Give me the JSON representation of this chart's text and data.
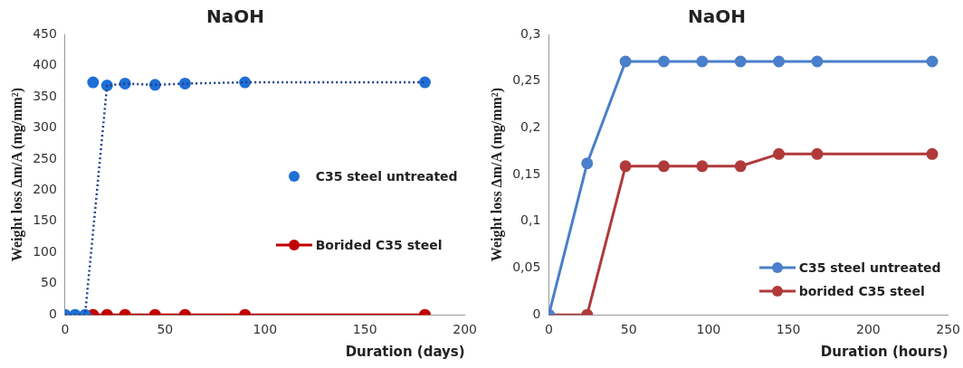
{
  "chart_data": [
    {
      "type": "line",
      "title": "NaOH",
      "xlabel": "Duration (days)",
      "ylabel": "Weight loss Δm/A (mg/mm²)",
      "xlim": [
        0,
        200
      ],
      "xticks": [
        0,
        50,
        100,
        150,
        200
      ],
      "ylim": [
        0,
        450
      ],
      "yticks": [
        0,
        50,
        100,
        150,
        200,
        250,
        300,
        350,
        400,
        450
      ],
      "grid": false,
      "legend": "center right",
      "marker": "circle",
      "series": [
        {
          "type": "line",
          "color": "#1f3c88",
          "line_style": "dotted",
          "marker": "none",
          "x": [
            0,
            10,
            21,
            30,
            45,
            60,
            90,
            180
          ],
          "values": [
            0,
            0,
            368,
            371,
            369,
            371,
            373,
            373
          ]
        },
        {
          "name": "C35 steel untreated",
          "type": "scatter",
          "color": "#1f6fd6",
          "x": [
            0,
            5,
            10,
            14,
            21,
            30,
            45,
            60,
            90,
            180
          ],
          "values": [
            0,
            0,
            0,
            373,
            368,
            371,
            369,
            371,
            373,
            373
          ]
        },
        {
          "name": "Borided C35 steel",
          "type": "line",
          "color": "#c00000",
          "line_style": "solid",
          "x": [
            14,
            21,
            30,
            45,
            60,
            90,
            180
          ],
          "values": [
            0,
            0,
            0,
            0,
            0,
            0,
            0
          ]
        }
      ]
    },
    {
      "type": "line",
      "title": "NaOH",
      "xlabel": "Duration (hours)",
      "ylabel": "Weight loss Δm/A (mg/mm²)",
      "xlim": [
        0,
        250
      ],
      "xticks": [
        0,
        50,
        100,
        150,
        200,
        250
      ],
      "ylim": [
        0,
        0.3
      ],
      "yticks": [
        0,
        {
          "value": 0.05,
          "label": "0,05"
        },
        {
          "value": 0.1,
          "label": "0,1"
        },
        {
          "value": 0.15,
          "label": "0,15"
        },
        {
          "value": 0.2,
          "label": "0,2"
        },
        {
          "value": 0.25,
          "label": "0,25"
        },
        {
          "value": 0.3,
          "label": "0,3"
        }
      ],
      "grid": false,
      "legend": "bottom right",
      "marker": "circle",
      "series": [
        {
          "name": "C35 steel untreated",
          "type": "line",
          "color": "#4a7fcb",
          "line_style": "solid",
          "x": [
            0,
            24,
            48,
            72,
            96,
            120,
            144,
            168,
            240
          ],
          "values": [
            0,
            0.162,
            0.271,
            0.271,
            0.271,
            0.271,
            0.271,
            0.271,
            0.271
          ]
        },
        {
          "name": "borided C35 steel",
          "type": "line",
          "color": "#b03a3a",
          "line_style": "solid",
          "x": [
            0,
            24,
            48,
            72,
            96,
            120,
            144,
            168,
            240
          ],
          "values": [
            0,
            0,
            0.159,
            0.159,
            0.159,
            0.159,
            0.172,
            0.172,
            0.172
          ]
        }
      ]
    }
  ]
}
